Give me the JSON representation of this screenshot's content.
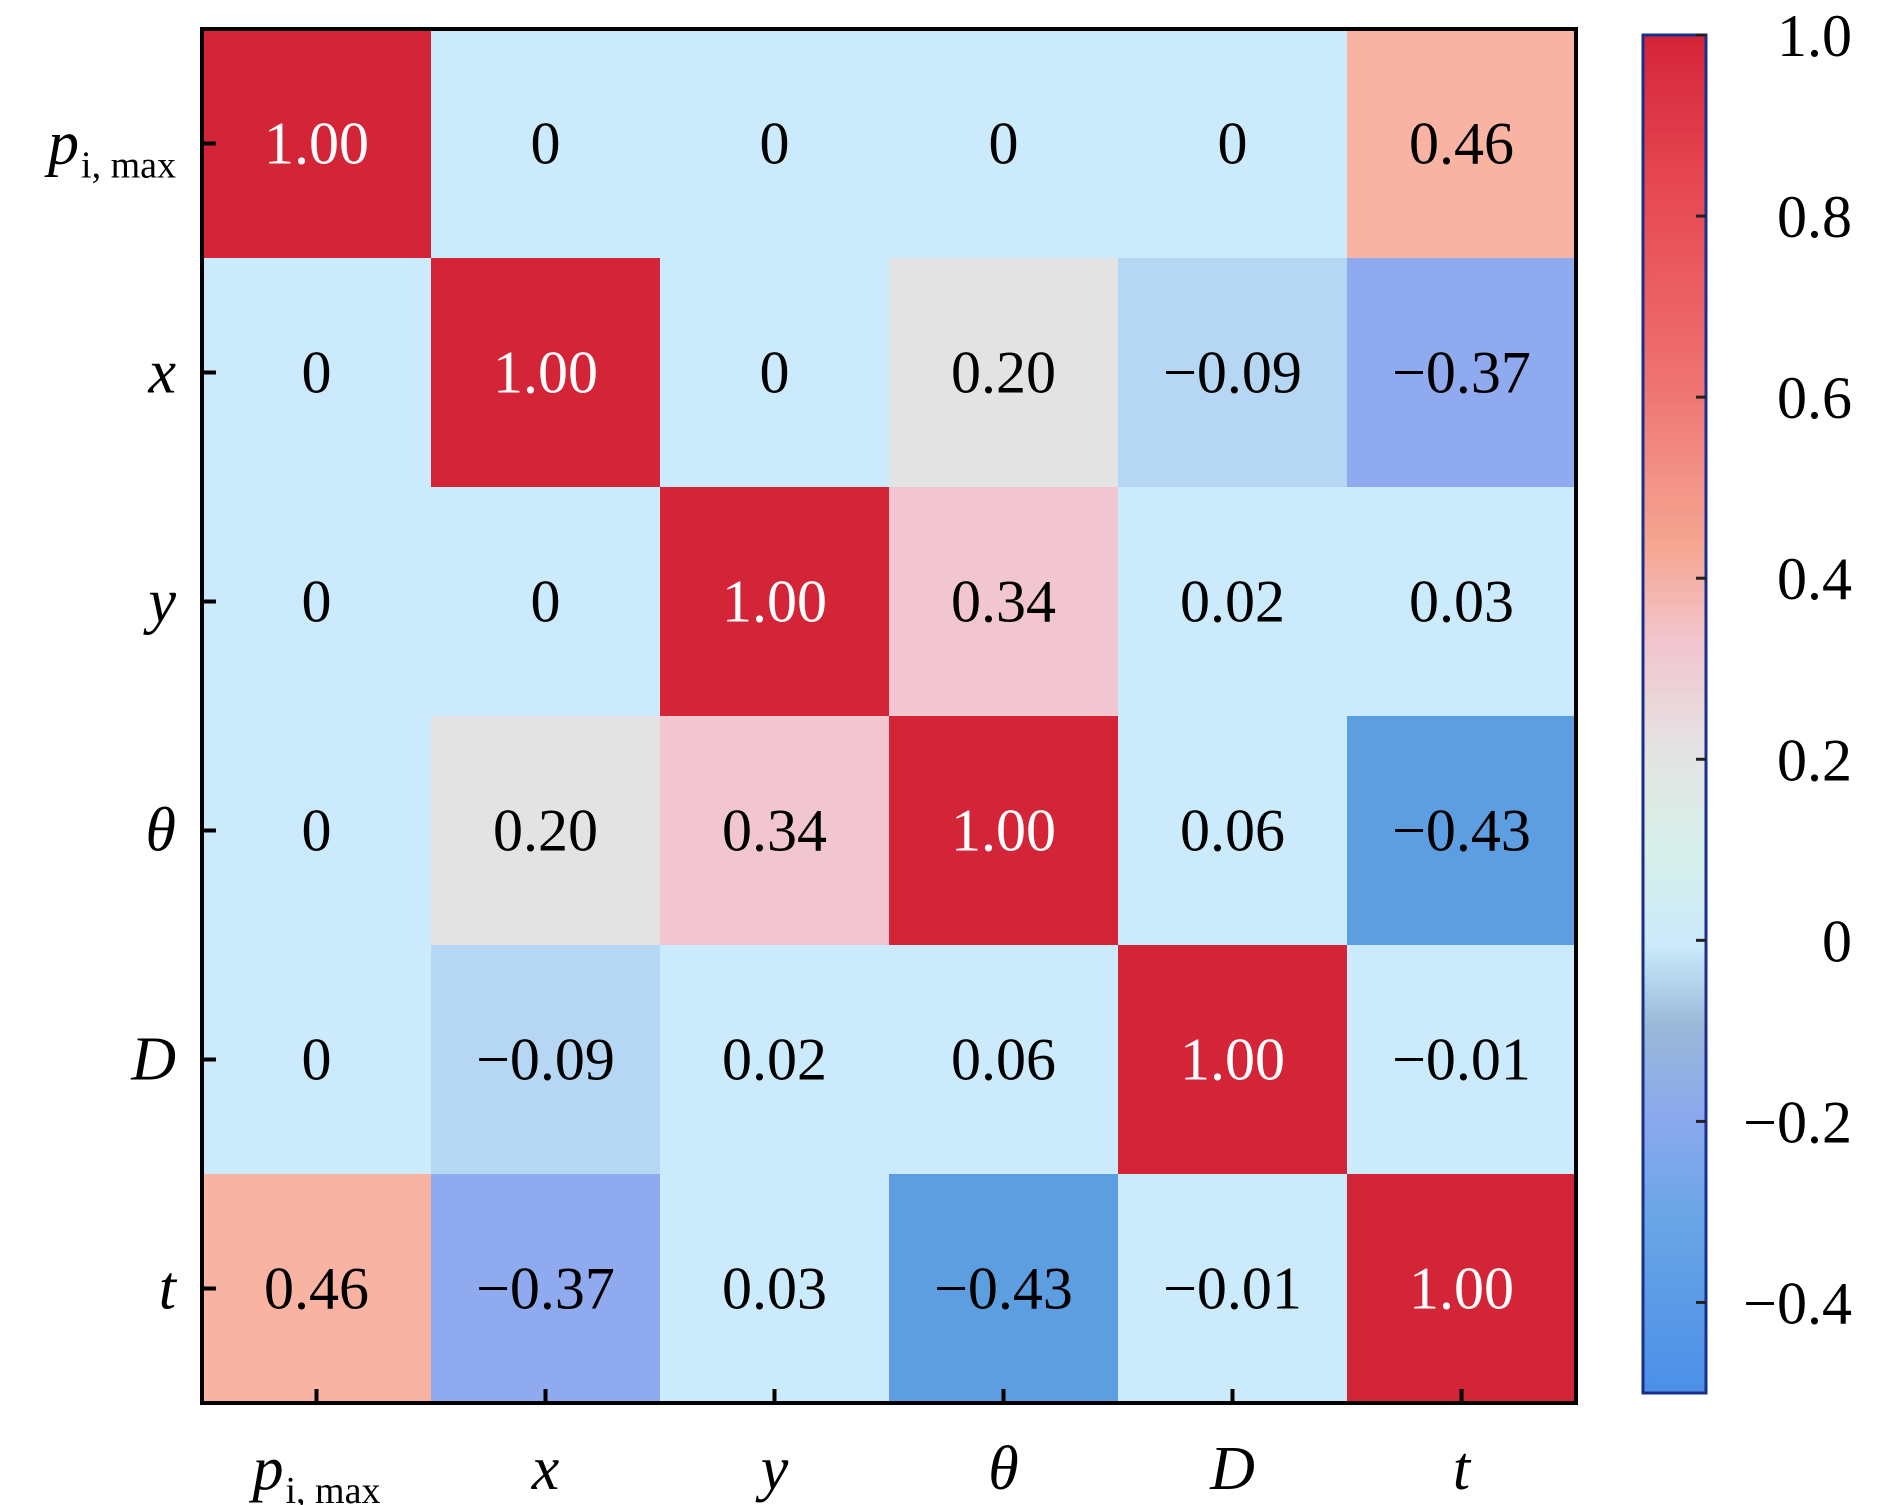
{
  "chart_data": {
    "type": "heatmap",
    "title": "",
    "xlabel": "",
    "ylabel": "",
    "x_labels": [
      {
        "main": "p",
        "sub": "i, max"
      },
      {
        "main": "x",
        "sub": ""
      },
      {
        "main": "y",
        "sub": ""
      },
      {
        "main": "θ",
        "sub": ""
      },
      {
        "main": "D",
        "sub": ""
      },
      {
        "main": "t",
        "sub": ""
      }
    ],
    "y_labels": [
      {
        "main": "p",
        "sub": "i, max"
      },
      {
        "main": "x",
        "sub": ""
      },
      {
        "main": "y",
        "sub": ""
      },
      {
        "main": "θ",
        "sub": ""
      },
      {
        "main": "D",
        "sub": ""
      },
      {
        "main": "t",
        "sub": ""
      }
    ],
    "values": [
      [
        1.0,
        0,
        0,
        0,
        0,
        0.46
      ],
      [
        0,
        1.0,
        0,
        0.2,
        -0.09,
        -0.37
      ],
      [
        0,
        0,
        1.0,
        0.34,
        0.02,
        0.03
      ],
      [
        0,
        0.2,
        0.34,
        1.0,
        0.06,
        -0.43
      ],
      [
        0,
        -0.09,
        0.02,
        0.06,
        1.0,
        -0.01
      ],
      [
        0.46,
        -0.37,
        0.03,
        -0.43,
        -0.01,
        1.0
      ]
    ],
    "cell_labels": [
      [
        "1.00",
        "0",
        "0",
        "0",
        "0",
        "0.46"
      ],
      [
        "0",
        "1.00",
        "0",
        "0.20",
        "−0.09",
        "−0.37"
      ],
      [
        "0",
        "0",
        "1.00",
        "0.34",
        "0.02",
        "0.03"
      ],
      [
        "0",
        "0.20",
        "0.34",
        "1.00",
        "0.06",
        "−0.43"
      ],
      [
        "0",
        "−0.09",
        "0.02",
        "0.06",
        "1.00",
        "−0.01"
      ],
      [
        "0.46",
        "−0.37",
        "0.03",
        "−0.43",
        "−0.01",
        "1.00"
      ]
    ],
    "colorbar": {
      "range": [
        -0.5,
        1.0
      ],
      "ticks": [
        1.0,
        0.8,
        0.6,
        0.4,
        0.2,
        0,
        -0.2,
        -0.4
      ],
      "tick_labels": [
        "1.0",
        "0.8",
        "0.6",
        "0.4",
        "0.2",
        "0",
        "−0.2",
        "−0.4"
      ],
      "placement": "right"
    },
    "grid": false
  },
  "colors": {
    "diagonal": "#d42538",
    "strong_positive": "#f9b3a2",
    "moderate_positive": "#f2c6d0",
    "weak_positive": "#e3e3e3",
    "near_zero": "#cbeafb",
    "weak_negative": "#b6d7f3",
    "moderate_negative": "#90aaf0",
    "strong_negative": "#5c9ee0",
    "text_on_dark": "#ffffff",
    "text_on_light": "#000000"
  }
}
